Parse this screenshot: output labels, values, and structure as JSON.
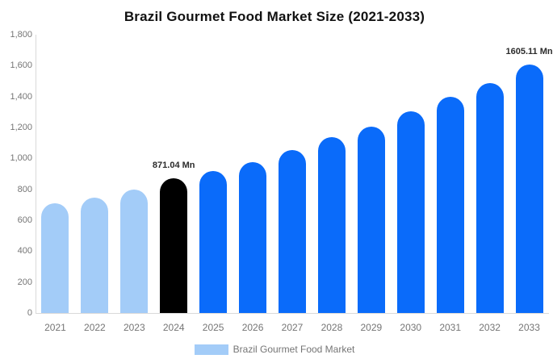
{
  "chart_data": {
    "type": "bar",
    "title": "Brazil Gourmet Food Market Size (2021-2033)",
    "legend": "Brazil Gourmet Food Market",
    "unit": "Mn",
    "categories": [
      "2021",
      "2022",
      "2023",
      "2024",
      "2025",
      "2026",
      "2027",
      "2028",
      "2029",
      "2030",
      "2031",
      "2032",
      "2033"
    ],
    "values": [
      710,
      748,
      800,
      871.04,
      916,
      978,
      1054,
      1137,
      1205,
      1304,
      1398,
      1487,
      1605.11
    ],
    "bar_colors": [
      "#A3CCF8",
      "#A3CCF8",
      "#A3CCF8",
      "#000000",
      "#0A6BFA",
      "#0A6BFA",
      "#0A6BFA",
      "#0A6BFA",
      "#0A6BFA",
      "#0A6BFA",
      "#0A6BFA",
      "#0A6BFA",
      "#0A6BFA"
    ],
    "ylim": [
      0,
      1800
    ],
    "y_ticks": [
      {
        "value": 0,
        "label": "0"
      },
      {
        "value": 200,
        "label": "200"
      },
      {
        "value": 400,
        "label": "400"
      },
      {
        "value": 600,
        "label": "600"
      },
      {
        "value": 800,
        "label": "800"
      },
      {
        "value": 1000,
        "label": "1,000"
      },
      {
        "value": 1200,
        "label": "1,200"
      },
      {
        "value": 1400,
        "label": "1,400"
      },
      {
        "value": 1600,
        "label": "1,600"
      },
      {
        "value": 1800,
        "label": "1,800"
      }
    ],
    "data_labels": [
      {
        "category": "2024",
        "text": "871.04 Mn"
      },
      {
        "category": "2033",
        "text": "1605.11 Mn"
      }
    ],
    "grid": false,
    "legend_position": "bottom",
    "colors": {
      "historical": "#A3CCF8",
      "highlight": "#000000",
      "forecast": "#0A6BFA",
      "axis_line": "#D9D9D9",
      "axis_text": "#757575",
      "data_label_text": "#2B2B2B"
    }
  }
}
